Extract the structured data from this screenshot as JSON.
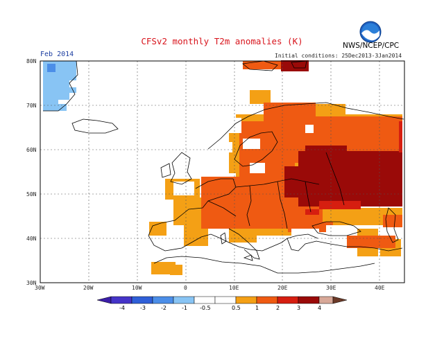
{
  "title": "CFSv2 monthly T2m anomalies (K)",
  "agency": "NWS/NCEP/CPC",
  "logo_text": "NOAA",
  "initial_conditions": "Initial conditions: 25Dec2013-3Jan2014",
  "month": "Feb 2014",
  "lat_labels": [
    "80N",
    "70N",
    "60N",
    "50N",
    "40N",
    "30N"
  ],
  "lon_labels": [
    "30W",
    "20W",
    "10W",
    "0",
    "10E",
    "20E",
    "30E",
    "40E"
  ],
  "colorbar": {
    "labels": [
      "-4",
      "-3",
      "-2",
      "-1",
      "-0.5",
      "0.5",
      "1",
      "2",
      "3",
      "4"
    ],
    "colors": {
      "lt-4": "#3b1ea8",
      "-4..-3": "#4534c8",
      "-3..-2": "#2f5fd8",
      "-2..-1": "#4b8ee8",
      "-1..-0.5": "#88c4f4",
      "-0.5..0.5": "#ffffff",
      "0.5..1": "#f4a015",
      "1..2": "#ef5a12",
      "2..3": "#d61e10",
      "3..4": "#9a0a08",
      "gt4": "#d8a898"
    }
  }
}
